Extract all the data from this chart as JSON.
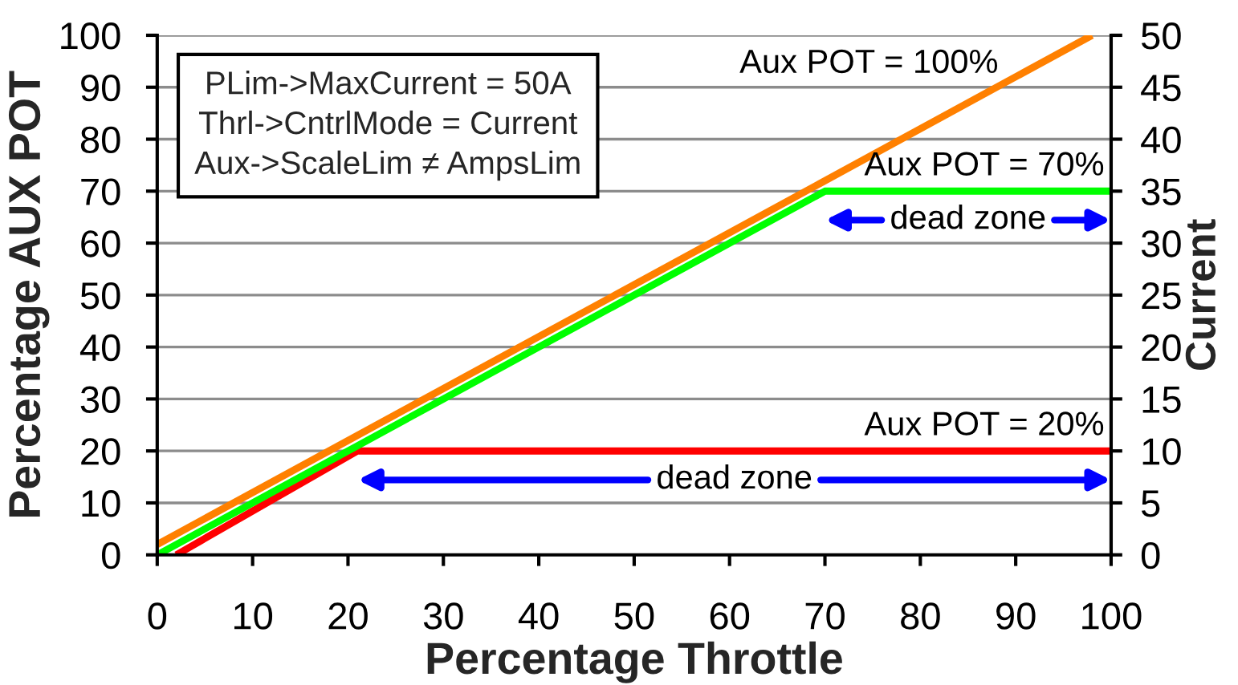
{
  "chart_data": {
    "type": "line",
    "xlabel": "Percentage Throttle",
    "ylabel": "Percentage AUX POT",
    "y2label": "Current",
    "xlim": [
      0,
      100
    ],
    "xticks": [
      0,
      10,
      20,
      30,
      40,
      50,
      60,
      70,
      80,
      90,
      100
    ],
    "ylim": [
      0,
      100
    ],
    "yticks": [
      0,
      10,
      20,
      30,
      40,
      50,
      60,
      70,
      80,
      90,
      100
    ],
    "y2lim": [
      0,
      50
    ],
    "y2ticks": [
      0,
      5,
      10,
      15,
      20,
      25,
      30,
      35,
      40,
      45,
      50
    ],
    "grid": "y",
    "series": [
      {
        "name": "Aux POT = 20%",
        "color": "#ff0000",
        "x": [
          2,
          21,
          100
        ],
        "values": [
          0,
          20,
          20
        ]
      },
      {
        "name": "Aux POT = 70%",
        "color": "#00ff00",
        "x": [
          0,
          70,
          100
        ],
        "values": [
          0,
          70,
          70
        ]
      },
      {
        "name": "Aux POT = 100%",
        "color": "#ff8000",
        "x": [
          0,
          98
        ],
        "values": [
          2,
          100
        ]
      }
    ],
    "annotations": [
      "PLim->MaxCurrent = 50A\nThrl->CntrlMode = Current\nAux->ScaleLim ≠ AmpsLim",
      "dead zone",
      "dead zone"
    ]
  }
}
